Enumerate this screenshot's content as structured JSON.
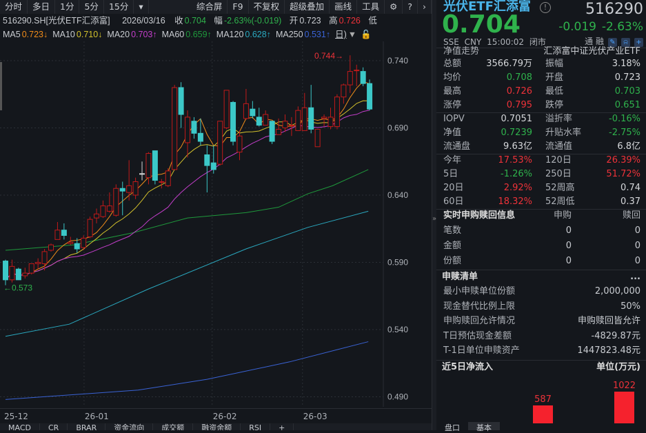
{
  "toolbar": {
    "left": [
      "分时",
      "多日",
      "1分",
      "5分",
      "15分"
    ],
    "dropdown_icon": "caret-down",
    "right": [
      "综合屏",
      "F9",
      "不复权",
      "超级叠加",
      "画线",
      "工具"
    ],
    "icons": [
      "gear-icon",
      "help-icon",
      "chevron-right-icon"
    ]
  },
  "info": {
    "code": "516290.SH[光伏ETF汇添富]",
    "date": "2026/03/16",
    "close_label": "收",
    "close": "0.704",
    "chg_label": "幅",
    "chg": "-2.63%(-0.019)",
    "open_label": "开",
    "open": "0.723",
    "high_label": "高",
    "high": "0.726",
    "low_label": "低"
  },
  "ma_row": [
    {
      "label": "MA5",
      "value": "0.723↓",
      "color": "#f08c1a"
    },
    {
      "label": "MA10",
      "value": "0.710↓",
      "color": "#d4c22c"
    },
    {
      "label": "MA20",
      "value": "0.703↑",
      "color": "#c43ecb"
    },
    {
      "label": "MA60",
      "value": "0.659↑",
      "color": "#1f9a3c"
    },
    {
      "label": "MA120",
      "value": "0.628↑",
      "color": "#2aa9c0"
    },
    {
      "label": "MA250",
      "value": "0.531↑",
      "color": "#3a63d6"
    }
  ],
  "period_label": "日)",
  "chart_data": {
    "type": "candlestick",
    "y_ticks": [
      0.74,
      0.69,
      0.64,
      0.59,
      0.54,
      0.49
    ],
    "x_ticks": [
      "25-12",
      "26-01",
      "26-02",
      "26-03"
    ],
    "x_tick_index": [
      0,
      12.4,
      32.1,
      46
    ],
    "max_label": "0.744",
    "min_label": "0.573",
    "candles": [
      [
        0.591,
        0.592,
        0.573,
        0.577
      ],
      [
        0.577,
        0.592,
        0.575,
        0.587
      ],
      [
        0.585,
        0.586,
        0.577,
        0.577
      ],
      [
        0.58,
        0.586,
        0.578,
        0.582
      ],
      [
        0.582,
        0.589,
        0.581,
        0.589
      ],
      [
        0.589,
        0.593,
        0.585,
        0.59
      ],
      [
        0.589,
        0.6,
        0.584,
        0.598
      ],
      [
        0.599,
        0.604,
        0.598,
        0.603
      ],
      [
        0.607,
        0.62,
        0.607,
        0.614
      ],
      [
        0.614,
        0.619,
        0.607,
        0.61
      ],
      [
        0.604,
        0.609,
        0.603,
        0.605
      ],
      [
        0.604,
        0.608,
        0.597,
        0.6
      ],
      [
        0.601,
        0.61,
        0.599,
        0.608
      ],
      [
        0.609,
        0.624,
        0.608,
        0.622
      ],
      [
        0.623,
        0.63,
        0.619,
        0.626
      ],
      [
        0.624,
        0.636,
        0.623,
        0.632
      ],
      [
        0.628,
        0.642,
        0.627,
        0.632
      ],
      [
        0.625,
        0.648,
        0.624,
        0.645
      ],
      [
        0.645,
        0.65,
        0.625,
        0.643
      ],
      [
        0.642,
        0.666,
        0.636,
        0.647
      ],
      [
        0.64,
        0.653,
        0.637,
        0.65
      ],
      [
        0.656,
        0.665,
        0.651,
        0.656
      ],
      [
        0.653,
        0.672,
        0.648,
        0.671
      ],
      [
        0.673,
        0.673,
        0.648,
        0.651
      ],
      [
        0.65,
        0.652,
        0.645,
        0.65
      ],
      [
        0.647,
        0.66,
        0.646,
        0.658
      ],
      [
        0.659,
        0.722,
        0.659,
        0.72
      ],
      [
        0.72,
        0.724,
        0.69,
        0.7
      ],
      [
        0.679,
        0.703,
        0.668,
        0.698
      ],
      [
        0.695,
        0.698,
        0.682,
        0.686
      ],
      [
        0.686,
        0.697,
        0.677,
        0.68
      ],
      [
        0.67,
        0.677,
        0.642,
        0.662
      ],
      [
        0.664,
        0.677,
        0.656,
        0.659
      ],
      [
        0.663,
        0.695,
        0.662,
        0.695
      ],
      [
        0.69,
        0.718,
        0.689,
        0.718
      ],
      [
        0.709,
        0.71,
        0.677,
        0.68
      ],
      [
        0.672,
        0.688,
        0.666,
        0.684
      ],
      [
        0.697,
        0.719,
        0.696,
        0.708
      ],
      [
        0.704,
        0.71,
        0.697,
        0.699
      ],
      [
        0.698,
        0.705,
        0.691,
        0.692
      ],
      [
        0.692,
        0.703,
        0.692,
        0.7
      ],
      [
        0.695,
        0.695,
        0.678,
        0.68
      ],
      [
        0.685,
        0.697,
        0.685,
        0.689
      ],
      [
        0.69,
        0.7,
        0.687,
        0.695
      ],
      [
        0.692,
        0.698,
        0.684,
        0.692
      ],
      [
        0.688,
        0.706,
        0.688,
        0.703
      ],
      [
        0.688,
        0.716,
        0.688,
        0.705
      ],
      [
        0.705,
        0.722,
        0.686,
        0.689
      ],
      [
        0.676,
        0.689,
        0.676,
        0.689
      ],
      [
        0.697,
        0.7,
        0.691,
        0.698
      ],
      [
        0.691,
        0.705,
        0.689,
        0.698
      ],
      [
        0.691,
        0.715,
        0.689,
        0.713
      ],
      [
        0.713,
        0.723,
        0.708,
        0.722
      ],
      [
        0.722,
        0.744,
        0.716,
        0.732
      ],
      [
        0.733,
        0.737,
        0.721,
        0.733
      ],
      [
        0.732,
        0.735,
        0.721,
        0.723
      ],
      [
        0.723,
        0.726,
        0.703,
        0.704
      ]
    ],
    "long_ma": {
      "MA60": [
        [
          0,
          0.599
        ],
        [
          10.5,
          0.603
        ],
        [
          19.6,
          0.612
        ],
        [
          28,
          0.623
        ],
        [
          37,
          0.627
        ],
        [
          42,
          0.631
        ],
        [
          46.5,
          0.641
        ],
        [
          50.3,
          0.647
        ],
        [
          55.8,
          0.659
        ]
      ],
      "MA120": [
        [
          0,
          0.535
        ],
        [
          9.8,
          0.544
        ],
        [
          21.9,
          0.57
        ],
        [
          37,
          0.6
        ],
        [
          46.5,
          0.616
        ],
        [
          55.8,
          0.628
        ]
      ],
      "MA250": [
        [
          0,
          0.488
        ],
        [
          20.4,
          0.495
        ],
        [
          31,
          0.503
        ],
        [
          43.7,
          0.516
        ],
        [
          55.8,
          0.531
        ]
      ]
    },
    "colors": {
      "up": "#c21a1a",
      "down": "#3cc8c8",
      "doji": "#d8d8d8"
    }
  },
  "bottom_tabs": [
    "MACD",
    "CR",
    "BRAR",
    "资金流向",
    "成交额",
    "融资余额",
    "RSI",
    "+"
  ],
  "quote": {
    "name": "光伏ETF汇添富",
    "code": "516290",
    "price": "0.704",
    "change": "-0.019",
    "change_pct": "-2.63%",
    "exchange": "SSE",
    "currency": "CNY",
    "time": "15:00:02",
    "status": "闭市",
    "tong": "通",
    "rong": "融"
  },
  "nav_trend": {
    "label": "净值走势",
    "fund": "汇添富中证光伏产业ETF"
  },
  "stats": [
    {
      "l": "总额",
      "v": "3566.79万",
      "vc": "n",
      "l2": "振幅",
      "v2": "3.18%",
      "v2c": "n"
    },
    {
      "l": "均价",
      "v": "0.708",
      "vc": "g",
      "l2": "开盘",
      "v2": "0.723",
      "v2c": "n"
    },
    {
      "l": "最高",
      "v": "0.726",
      "vc": "r",
      "l2": "最低",
      "v2": "0.703",
      "v2c": "g"
    },
    {
      "l": "涨停",
      "v": "0.795",
      "vc": "r",
      "l2": "跌停",
      "v2": "0.651",
      "v2c": "g"
    },
    {
      "l": "IOPV",
      "v": "0.7051",
      "vc": "n",
      "l2": "溢折率",
      "v2": "-0.16%",
      "v2c": "g"
    },
    {
      "l": "净值",
      "v": "0.7239",
      "vc": "g",
      "l2": "升贴水率",
      "v2": "-2.75%",
      "v2c": "g"
    },
    {
      "l": "流通盘",
      "v": "9.63亿",
      "vc": "n",
      "l2": "流通值",
      "v2": "6.8亿",
      "v2c": "n"
    },
    {
      "l": "今年",
      "v": "17.53%",
      "vc": "r",
      "l2": "120日",
      "v2": "26.39%",
      "v2c": "r"
    },
    {
      "l": "5日",
      "v": "-1.26%",
      "vc": "g",
      "l2": "250日",
      "v2": "51.72%",
      "v2c": "r"
    },
    {
      "l": "20日",
      "v": "2.92%",
      "vc": "r",
      "l2": "52周高",
      "v2": "0.74",
      "v2c": "n"
    },
    {
      "l": "60日",
      "v": "18.32%",
      "vc": "r",
      "l2": "52周低",
      "v2": "0.37",
      "v2c": "n"
    }
  ],
  "realtime": {
    "title": "实时申购赎回信息",
    "col1": "申购",
    "col2": "赎回",
    "rows": [
      [
        "笔数",
        "0",
        "0"
      ],
      [
        "金额",
        "0",
        "0"
      ],
      [
        "份额",
        "0",
        "0"
      ]
    ]
  },
  "creation": {
    "title": "申赎清单",
    "more": "...",
    "rows": [
      [
        "最小申赎单位份额",
        "2,000,000"
      ],
      [
        "现金替代比例上限",
        "50%"
      ],
      [
        "申购赎回允许情况",
        "申购赎回皆允许"
      ],
      [
        "T日预估现金差额",
        "-4829.87元"
      ],
      [
        "T-1日单位申赎资产",
        "1447823.48元"
      ]
    ]
  },
  "inflow": {
    "title": "近5日净流入",
    "unit": "单位(万元)",
    "bars": [
      {
        "value": 587
      },
      {
        "value": 1022
      }
    ],
    "max_value": 1022
  },
  "right_tabs": [
    "盘口",
    "基本"
  ]
}
